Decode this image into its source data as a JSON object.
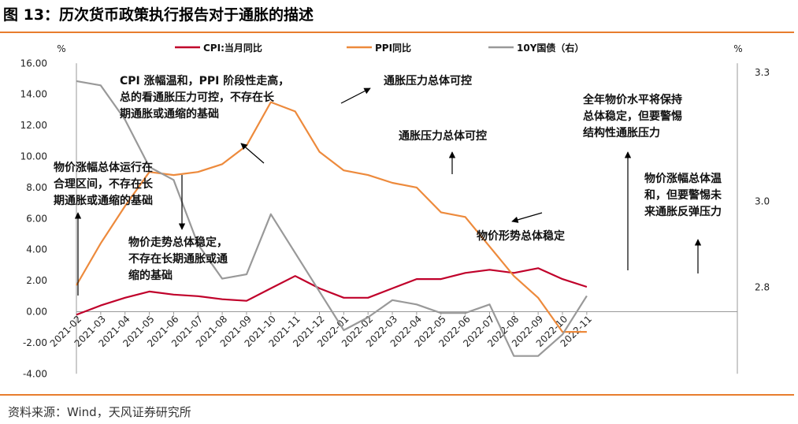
{
  "header": {
    "title": "图 13：历次货币政策执行报告对于通胀的描述"
  },
  "footer": {
    "source": "资料来源：Wind，天风证券研究所"
  },
  "colors": {
    "accent_rule": "#e87d2e",
    "cpi": "#c0002a",
    "ppi": "#ed8a3c",
    "bond": "#999999"
  },
  "chart_data": {
    "type": "line",
    "left_unit": "%",
    "right_unit": "%",
    "categories": [
      "2021-02",
      "2021-03",
      "2021-04",
      "2021-05",
      "2021-06",
      "2021-07",
      "2021-08",
      "2021-09",
      "2021-10",
      "2021-11",
      "2021-12",
      "2022-01",
      "2022-02",
      "2022-03",
      "2022-04",
      "2022-05",
      "2022-06",
      "2022-07",
      "2022-08",
      "2022-09",
      "2022-10",
      "2022-11"
    ],
    "ylim_left": [
      -4,
      16
    ],
    "yticks_left": [
      "16.00",
      "14.00",
      "12.00",
      "10.00",
      "8.00",
      "6.00",
      "4.00",
      "2.00",
      "0.00",
      "-2.00",
      "-4.00"
    ],
    "ylim_right": [
      2.5,
      3.4
    ],
    "yticks_right": [
      "3.3",
      "3.0",
      "2.8",
      "2.5"
    ],
    "series": [
      {
        "name": "CPI:当月同比",
        "axis": "left",
        "color": "#c0002a",
        "values": [
          -0.2,
          0.4,
          0.9,
          1.3,
          1.1,
          1.0,
          0.8,
          0.7,
          1.5,
          2.3,
          1.5,
          0.9,
          0.9,
          1.5,
          2.1,
          2.1,
          2.5,
          2.7,
          2.5,
          2.8,
          2.1,
          1.6
        ]
      },
      {
        "name": "PPI同比",
        "axis": "left",
        "color": "#ed8a3c",
        "values": [
          1.7,
          4.4,
          6.8,
          9.0,
          8.8,
          9.0,
          9.5,
          10.7,
          13.5,
          12.9,
          10.3,
          9.1,
          8.8,
          8.3,
          8.0,
          6.4,
          6.1,
          4.2,
          2.3,
          0.9,
          -1.3,
          -1.3
        ]
      },
      {
        "name": "10Y国债（右）",
        "axis": "right",
        "color": "#999999",
        "values": [
          3.28,
          3.27,
          3.19,
          3.08,
          3.05,
          2.9,
          2.82,
          2.83,
          2.97,
          2.88,
          2.79,
          2.7,
          2.73,
          2.77,
          2.76,
          2.74,
          2.74,
          2.76,
          2.64,
          2.64,
          2.69,
          2.78
        ]
      }
    ],
    "annotations": [
      {
        "lines": [
          "CPI 涨幅温和，PPI 阶段性走高，",
          "总的看通胀压力可控，不存在长",
          "期通胀或通缩的基础"
        ]
      },
      {
        "lines": [
          "通胀压力总体可控"
        ]
      },
      {
        "lines": [
          "通胀压力总体可控"
        ]
      },
      {
        "lines": [
          "全年物价水平将保持",
          "总体稳定，但要警惕",
          "结构性通胀压力"
        ]
      },
      {
        "lines": [
          "物价涨幅总体运行在",
          "合理区间，不存在长",
          "期通胀或通缩的基础"
        ]
      },
      {
        "lines": [
          "物价涨幅总体温",
          "和，但要警惕未",
          "来通胀反弹压力"
        ]
      },
      {
        "lines": [
          "物价走势总体稳定，",
          "不存在长期通胀或通",
          "缩的基础"
        ]
      },
      {
        "lines": [
          "物价形势总体稳定"
        ]
      }
    ]
  }
}
